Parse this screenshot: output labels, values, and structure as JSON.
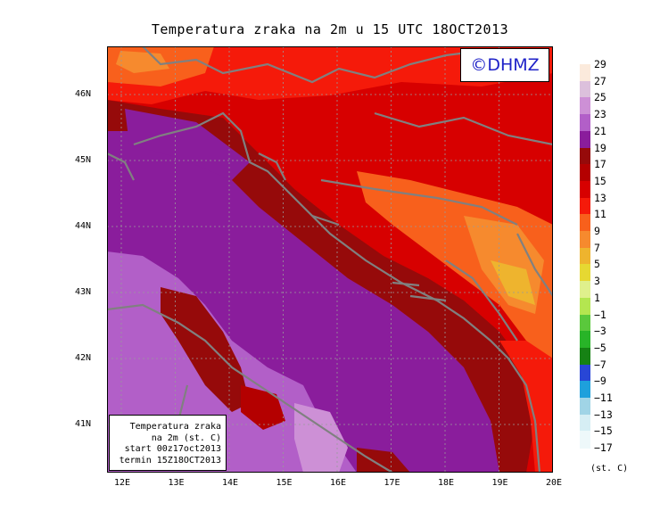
{
  "title": "Temperatura zraka na 2m u 15 UTC 18OCT2013",
  "logo": "©DHMZ",
  "info": {
    "line1": "Temperatura zraka",
    "line2": "na 2m (st. C)",
    "line3": "start 00z17oct2013",
    "line4": "termin 15Z18OCT2013"
  },
  "lat_labels": [
    "46N",
    "45N",
    "44N",
    "43N",
    "42N",
    "41N"
  ],
  "lon_labels": [
    "12E",
    "13E",
    "14E",
    "15E",
    "16E",
    "17E",
    "18E",
    "19E",
    "20E"
  ],
  "legend": {
    "unit": "(st. C)",
    "ticks": [
      "29",
      "27",
      "25",
      "23",
      "21",
      "19",
      "17",
      "15",
      "13",
      "11",
      "9",
      "7",
      "5",
      "3",
      "1",
      "−1",
      "−3",
      "−5",
      "−7",
      "−9",
      "−11",
      "−13",
      "−15",
      "−17"
    ],
    "colors": [
      "#fbeadc",
      "#dcc0dc",
      "#cd90d6",
      "#b25fc8",
      "#8a1d9c",
      "#960a0a",
      "#b40000",
      "#d70000",
      "#f51a0a",
      "#f8601c",
      "#f68a2e",
      "#eeb42e",
      "#e6d832",
      "#dff08c",
      "#b4e650",
      "#5ac83c",
      "#28b428",
      "#168214",
      "#2846d6",
      "#1ea0dc",
      "#a0d4e6",
      "#d6eef4",
      "#eef8fa"
    ],
    "tick_colors_note": ""
  },
  "map": {
    "lat_range": [
      40.3,
      46.75
    ],
    "lon_range": [
      11.7,
      20.0
    ],
    "coast_color": "#808080",
    "grid_color": "#9a9a9a"
  }
}
